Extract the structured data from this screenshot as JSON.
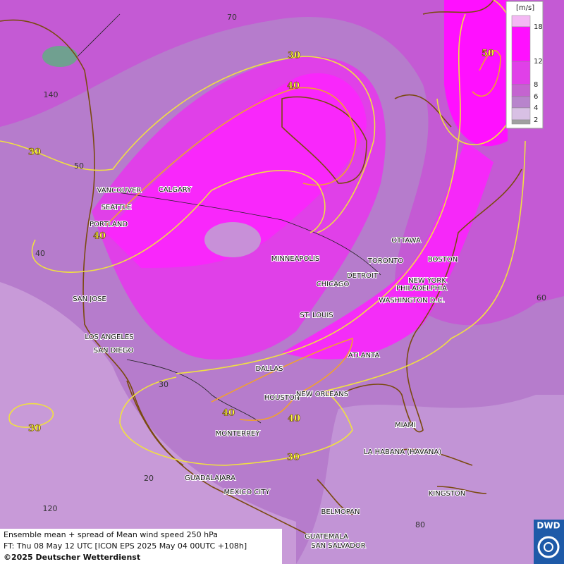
{
  "map": {
    "cities": [
      "VANCOUVER",
      "CALGARY",
      "SEATTLE",
      "PORTLAND",
      "SAN JOSE",
      "LOS ANGELES",
      "SAN DIEGO",
      "MINNEAPOLIS",
      "CHICAGO",
      "DETROIT",
      "TORONTO",
      "OTTAWA",
      "BOSTON",
      "NEW YORK",
      "PHILADELPHIA",
      "WASHINGTON D.C.",
      "ST. LOUIS",
      "ATLANTA",
      "DALLAS",
      "HOUSTON",
      "NEW ORLEANS",
      "MIAMI",
      "MONTERREY",
      "LA HABANA (HAVANA)",
      "GUADALAJARA",
      "MEXICO CITY",
      "KINGSTON",
      "BELMOPAN",
      "GUATEMALA",
      "SAN SALVADOR"
    ],
    "contour_labels": [
      "30",
      "40",
      "50",
      "30",
      "40",
      "40",
      "40",
      "30",
      "30"
    ],
    "grid_labels": [
      "70",
      "140",
      "50",
      "40",
      "60",
      "30",
      "20",
      "120",
      "80"
    ],
    "legend": {
      "title": "[m/s]",
      "ticks": [
        18,
        12,
        8,
        6,
        4,
        2
      ],
      "colors": [
        "#f4b8f4",
        "#ff10ff",
        "#e040e8",
        "#c464d0",
        "#b884cc",
        "#d8c0e4",
        "#a0a0a0"
      ]
    },
    "footer": [
      "Ensemble mean + spread of Mean wind speed 250 hPa",
      "FT: Thu 08 May 12 UTC [ICON EPS 2025 May 04 00UTC +108h]",
      "©2025 Deutscher Wetterdienst"
    ],
    "logo": "DWD"
  }
}
